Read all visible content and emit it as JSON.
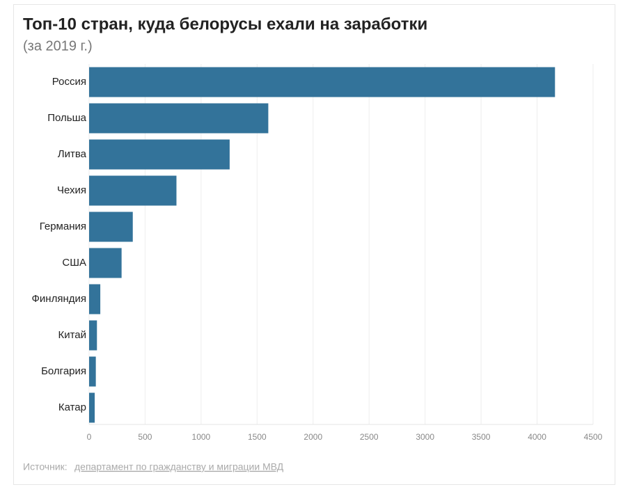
{
  "chart_data": {
    "type": "bar",
    "orientation": "horizontal",
    "title": "Топ-10 стран, куда белорусы ехали на заработки",
    "subtitle": "(за 2019 г.)",
    "categories": [
      "Россия",
      "Польша",
      "Литва",
      "Чехия",
      "Германия",
      "США",
      "Финляндия",
      "Китай",
      "Болгария",
      "Катар"
    ],
    "values": [
      4160,
      1600,
      1255,
      780,
      390,
      290,
      100,
      70,
      60,
      50
    ],
    "color": "#33739a",
    "xlim": [
      0,
      4500
    ],
    "xticks": [
      0,
      500,
      1000,
      1500,
      2000,
      2500,
      3000,
      3500,
      4000,
      4500
    ],
    "grid": true,
    "source_label": "Источник:",
    "source_link": "департамент по гражданству и миграции МВД"
  }
}
